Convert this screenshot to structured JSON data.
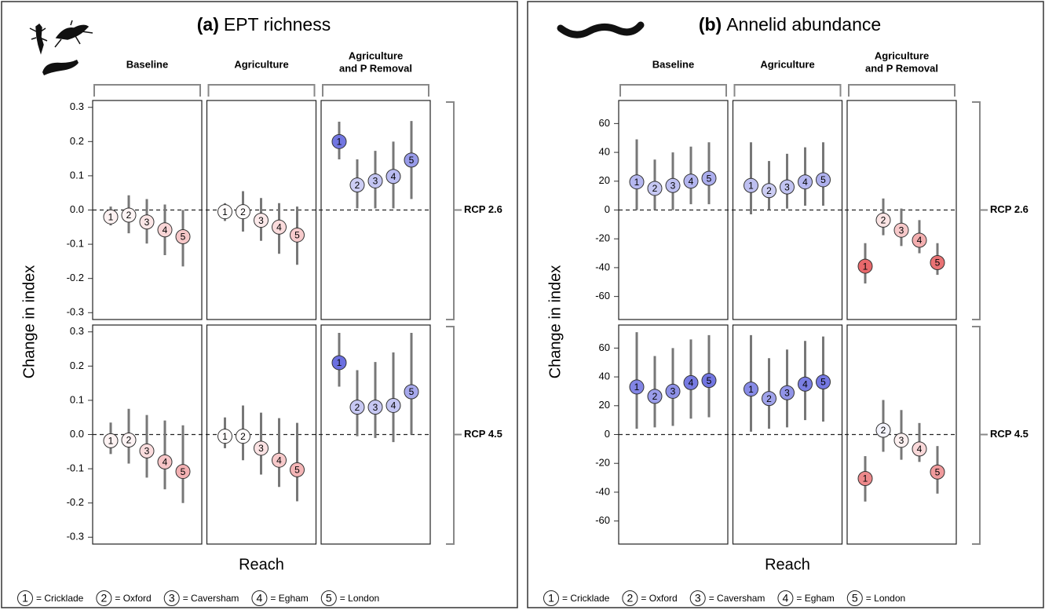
{
  "chart_data": [
    {
      "type": "pointrange",
      "label": "(a)",
      "title": "EPT richness",
      "ylabel": "Change in index",
      "xlabel": "Reach",
      "columns": [
        [
          "Baseline"
        ],
        [
          "Agriculture"
        ],
        [
          "Agriculture",
          "and P Removal"
        ]
      ],
      "rows": [
        "RCP 2.6",
        "RCP 4.5"
      ],
      "categories": [
        "1",
        "2",
        "3",
        "4",
        "5"
      ],
      "legend": [
        "= Cricklade",
        "= Oxford",
        "= Caversham",
        "= Egham",
        "= London"
      ],
      "ylim": [
        -0.32,
        0.32
      ],
      "yticks": [
        -0.3,
        -0.2,
        -0.1,
        {
          "value": 0,
          "label": "0.0"
        },
        0.1,
        0.2,
        0.3
      ],
      "color_scale": {
        "negative": "#e8686b",
        "zero": "#ffffff",
        "positive": "#6b6fe0"
      },
      "panels": [
        [
          {
            "values": [
              -0.02,
              -0.015,
              -0.035,
              -0.058,
              -0.078
            ],
            "lower": [
              -0.045,
              -0.068,
              -0.098,
              -0.132,
              -0.165
            ],
            "upper": [
              0.01,
              0.043,
              0.032,
              0.016,
              0.0
            ]
          },
          {
            "values": [
              -0.005,
              -0.005,
              -0.03,
              -0.05,
              -0.073
            ],
            "lower": [
              -0.032,
              -0.063,
              -0.09,
              -0.128,
              -0.16
            ],
            "upper": [
              0.02,
              0.055,
              0.035,
              0.02,
              0.01
            ]
          },
          {
            "values": [
              0.2,
              0.073,
              0.085,
              0.098,
              0.146
            ],
            "lower": [
              0.148,
              0.005,
              0.005,
              0.005,
              0.032
            ],
            "upper": [
              0.258,
              0.148,
              0.173,
              0.2,
              0.26
            ]
          }
        ],
        [
          {
            "values": [
              -0.018,
              -0.016,
              -0.048,
              -0.08,
              -0.108
            ],
            "lower": [
              -0.057,
              -0.085,
              -0.126,
              -0.16,
              -0.2
            ],
            "upper": [
              0.035,
              0.075,
              0.057,
              0.041,
              0.027
            ]
          },
          {
            "values": [
              -0.005,
              -0.005,
              -0.04,
              -0.075,
              -0.103
            ],
            "lower": [
              -0.04,
              -0.075,
              -0.117,
              -0.153,
              -0.195
            ],
            "upper": [
              0.05,
              0.085,
              0.064,
              0.048,
              0.034
            ]
          },
          {
            "values": [
              0.21,
              0.08,
              0.08,
              0.085,
              0.125
            ],
            "lower": [
              0.14,
              -0.005,
              -0.01,
              -0.022,
              0.0
            ],
            "upper": [
              0.297,
              0.188,
              0.212,
              0.24,
              0.297
            ]
          }
        ]
      ]
    },
    {
      "type": "pointrange",
      "label": "(b)",
      "title": "Annelid abundance",
      "ylabel": "Change in index",
      "xlabel": "Reach",
      "columns": [
        [
          "Baseline"
        ],
        [
          "Agriculture"
        ],
        [
          "Agriculture",
          "and P Removal"
        ]
      ],
      "rows": [
        "RCP 2.6",
        "RCP 4.5"
      ],
      "categories": [
        "1",
        "2",
        "3",
        "4",
        "5"
      ],
      "legend": [
        "= Cricklade",
        "= Oxford",
        "= Caversham",
        "= Egham",
        "= London"
      ],
      "ylim": [
        -76,
        76
      ],
      "yticks": [
        -60,
        -40,
        -20,
        0,
        20,
        40,
        60
      ],
      "color_scale": {
        "negative": "#e8686b",
        "zero": "#ffffff",
        "positive": "#6b6fe0"
      },
      "panels": [
        [
          {
            "values": [
              19.5,
              15,
              17,
              20,
              22
            ],
            "lower": [
              0,
              0,
              0,
              4,
              4
            ],
            "upper": [
              49,
              35,
              40,
              44,
              47
            ]
          },
          {
            "values": [
              17,
              13.5,
              16,
              19.5,
              21
            ],
            "lower": [
              -3,
              0,
              1,
              3,
              3
            ],
            "upper": [
              47,
              34,
              39,
              43.5,
              47
            ]
          },
          {
            "values": [
              -39,
              -7,
              -14,
              -21,
              -36.5
            ],
            "lower": [
              -51,
              -17.5,
              -25,
              -30,
              -45
            ],
            "upper": [
              -23,
              8,
              1,
              -7,
              -23
            ]
          }
        ],
        [
          {
            "values": [
              33,
              26.5,
              30,
              36,
              37.5
            ],
            "lower": [
              4,
              5,
              6,
              11,
              12
            ],
            "upper": [
              71,
              54.5,
              60,
              66,
              69
            ]
          },
          {
            "values": [
              31.5,
              25,
              29,
              35,
              36.5
            ],
            "lower": [
              2,
              4,
              5,
              10,
              9
            ],
            "upper": [
              69,
              53,
              59,
              65,
              68
            ]
          },
          {
            "values": [
              -30.5,
              3,
              -4,
              -10,
              -26
            ],
            "lower": [
              -46.5,
              -12,
              -17.5,
              -19,
              -41
            ],
            "upper": [
              -15,
              24,
              17,
              8,
              -8
            ]
          }
        ]
      ]
    }
  ]
}
